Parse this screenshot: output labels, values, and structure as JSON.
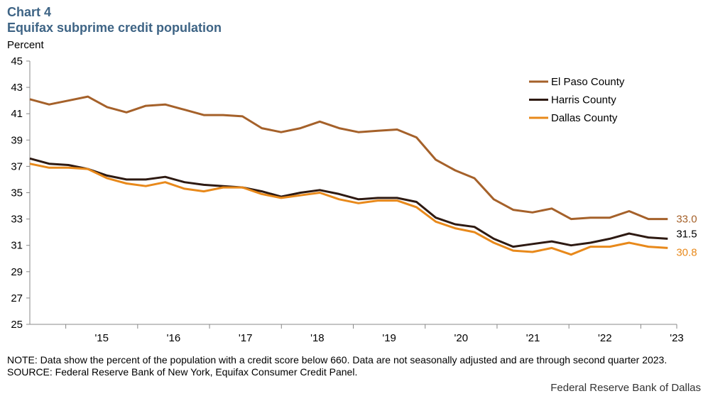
{
  "header": {
    "chart_number": "Chart 4",
    "title": "Equifax subprime credit population",
    "ylabel": "Percent"
  },
  "footer": {
    "note": "NOTE: Data show the percent of the population with a credit score below 660. Data are not seasonally adjusted and are through second quarter 2023.",
    "source": "SOURCE: Federal Reserve Bank of New York, Equifax Consumer Credit Panel.",
    "credit": "Federal Reserve Bank of Dallas"
  },
  "chart_data": {
    "type": "line",
    "title": "Equifax subprime credit population",
    "xlabel": "",
    "ylabel": "Percent",
    "ylim": [
      25,
      45
    ],
    "yticks": [
      25,
      27,
      29,
      31,
      33,
      35,
      37,
      39,
      41,
      43,
      45
    ],
    "x_start_year": 2014.5,
    "x_end_year": 2023.5,
    "xtick_labels": [
      "'15",
      "'16",
      "'17",
      "'18",
      "'19",
      "'20",
      "'21",
      "'22",
      "'23"
    ],
    "grid": false,
    "legend_position": "top-right",
    "series": [
      {
        "name": "El Paso County",
        "color": "#a5612a",
        "end_label": "33.0",
        "values": [
          42.1,
          41.7,
          42.0,
          42.3,
          41.5,
          41.1,
          41.6,
          41.7,
          41.3,
          40.9,
          40.9,
          40.8,
          39.9,
          39.6,
          39.9,
          40.4,
          39.9,
          39.6,
          39.7,
          39.8,
          39.2,
          37.5,
          36.7,
          36.1,
          34.5,
          33.7,
          33.5,
          33.8,
          33.0,
          33.1,
          33.1,
          33.6,
          33.0,
          33.0
        ]
      },
      {
        "name": "Harris County",
        "color": "#2e1a12",
        "end_label": "31.5",
        "values": [
          37.6,
          37.2,
          37.1,
          36.8,
          36.3,
          36.0,
          36.0,
          36.2,
          35.8,
          35.6,
          35.5,
          35.4,
          35.1,
          34.7,
          35.0,
          35.2,
          34.9,
          34.5,
          34.6,
          34.6,
          34.3,
          33.1,
          32.6,
          32.4,
          31.5,
          30.9,
          31.1,
          31.3,
          31.0,
          31.2,
          31.5,
          31.9,
          31.6,
          31.5
        ]
      },
      {
        "name": "Dallas County",
        "color": "#e8891b",
        "end_label": "30.8",
        "values": [
          37.2,
          36.9,
          36.9,
          36.8,
          36.1,
          35.7,
          35.5,
          35.8,
          35.3,
          35.1,
          35.4,
          35.4,
          34.9,
          34.6,
          34.8,
          35.0,
          34.5,
          34.2,
          34.4,
          34.4,
          33.9,
          32.8,
          32.3,
          32.0,
          31.2,
          30.6,
          30.5,
          30.8,
          30.3,
          30.9,
          30.9,
          31.2,
          30.9,
          30.8
        ]
      }
    ]
  }
}
